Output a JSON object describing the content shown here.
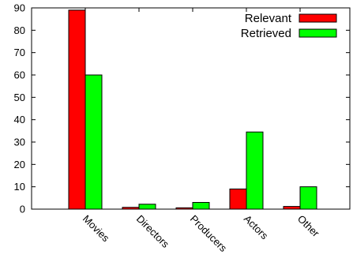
{
  "chart_data": {
    "type": "bar",
    "categories": [
      "Movies",
      "Directors",
      "Producers",
      "Actors",
      "Other"
    ],
    "series": [
      {
        "name": "Relevant",
        "values": [
          89,
          0.8,
          0.6,
          9,
          1.2
        ]
      },
      {
        "name": "Retrieved",
        "values": [
          60,
          2.2,
          3,
          34.5,
          10
        ]
      }
    ],
    "yticks": [
      0,
      10,
      20,
      30,
      40,
      50,
      60,
      70,
      80,
      90
    ],
    "ylim": [
      0,
      90
    ],
    "legend_position": "top-right",
    "colors": {
      "Relevant": "#ff0000",
      "Retrieved": "#00ff00"
    }
  }
}
